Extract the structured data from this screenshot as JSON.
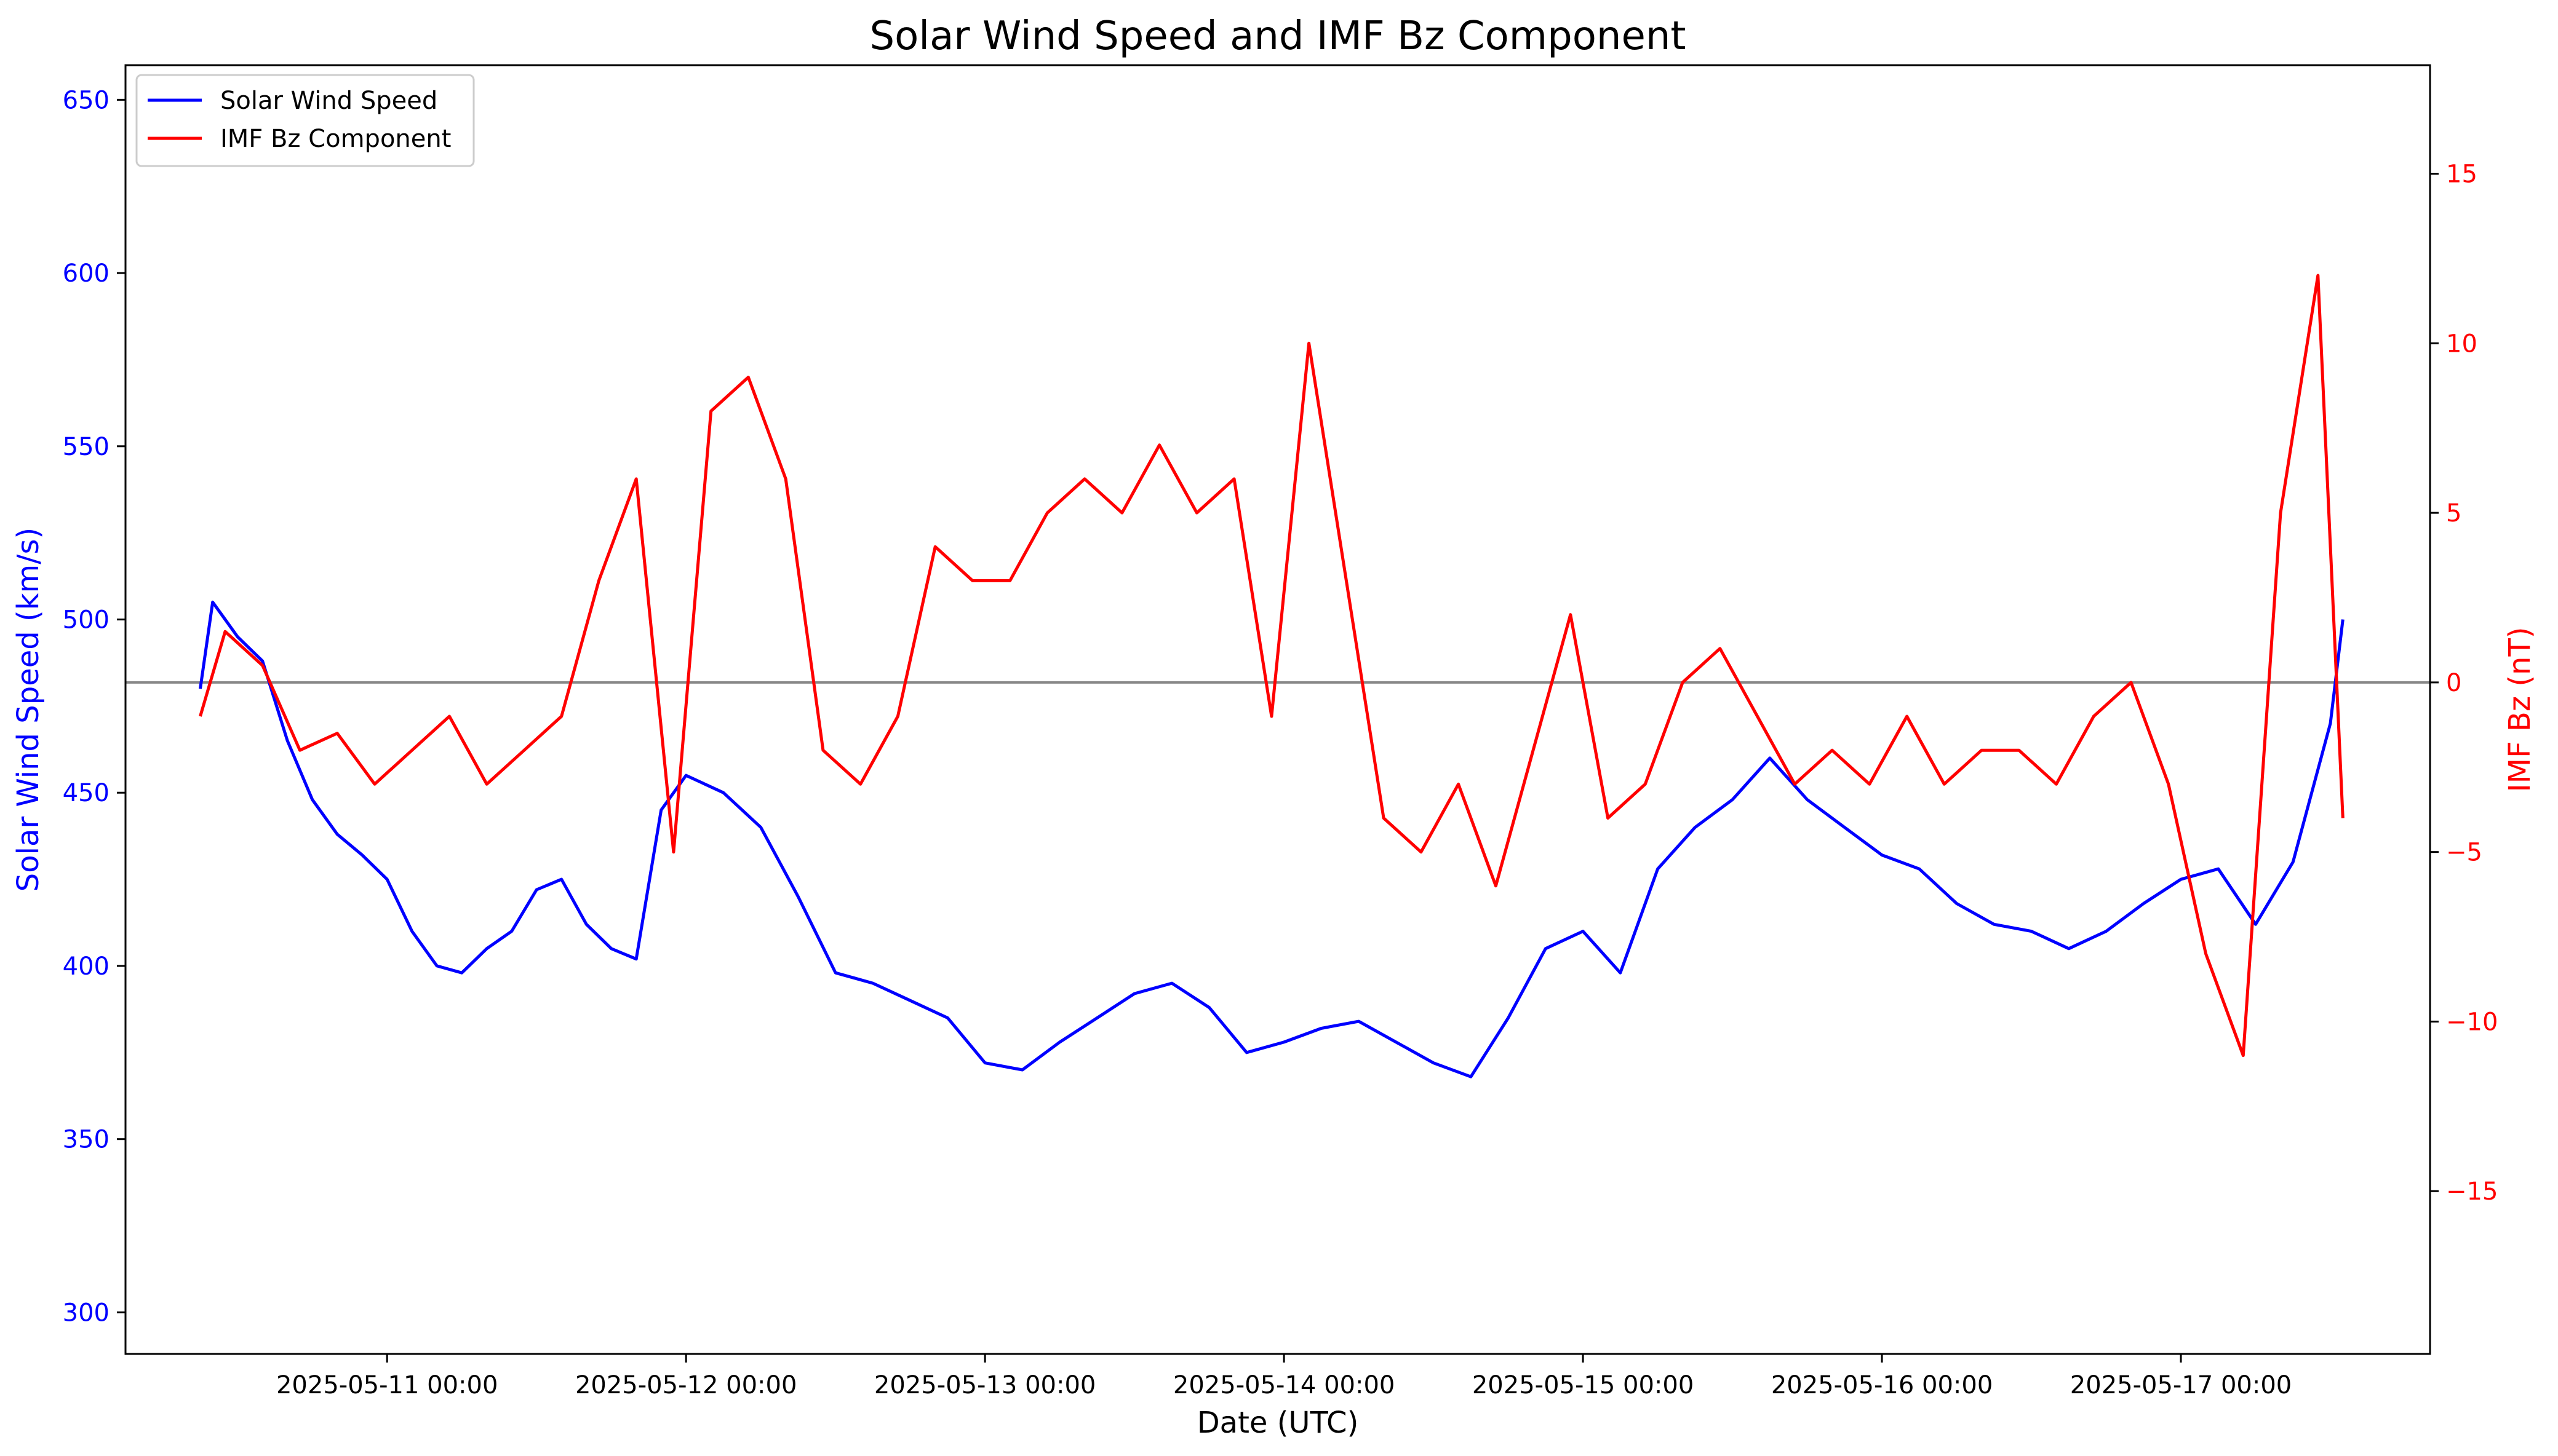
{
  "chart_data": {
    "type": "line",
    "title": "Solar Wind Speed and IMF Bz Component",
    "xlabel": "Date (UTC)",
    "ylabel_left": "Solar Wind Speed (km/s)",
    "ylabel_right": "IMF Bz (nT)",
    "xlim": [
      "2025-05-10 03:00",
      "2025-05-17 20:00"
    ],
    "ylim_left": [
      288,
      660
    ],
    "ylim_right": [
      -19.8,
      18.2
    ],
    "x_ticks": [
      "2025-05-11 00:00",
      "2025-05-12 00:00",
      "2025-05-13 00:00",
      "2025-05-14 00:00",
      "2025-05-15 00:00",
      "2025-05-16 00:00",
      "2025-05-17 00:00"
    ],
    "y_ticks_left": [
      300,
      350,
      400,
      450,
      500,
      550,
      600,
      650
    ],
    "y_ticks_right": [
      -15,
      -10,
      -5,
      0,
      5,
      10,
      15
    ],
    "reference_line": {
      "axis": "right",
      "value": 0,
      "color": "#888888"
    },
    "grid": false,
    "legend_position": "upper-left",
    "series": [
      {
        "name": "Solar Wind Speed",
        "axis": "left",
        "color": "#0000ff",
        "x": [
          "2025-05-10 09:00",
          "2025-05-10 10:00",
          "2025-05-10 11:00",
          "2025-05-10 12:00",
          "2025-05-10 14:00",
          "2025-05-10 16:00",
          "2025-05-10 18:00",
          "2025-05-10 20:00",
          "2025-05-10 22:00",
          "2025-05-11 00:00",
          "2025-05-11 02:00",
          "2025-05-11 04:00",
          "2025-05-11 06:00",
          "2025-05-11 08:00",
          "2025-05-11 10:00",
          "2025-05-11 12:00",
          "2025-05-11 14:00",
          "2025-05-11 16:00",
          "2025-05-11 18:00",
          "2025-05-11 20:00",
          "2025-05-11 22:00",
          "2025-05-12 00:00",
          "2025-05-12 03:00",
          "2025-05-12 06:00",
          "2025-05-12 09:00",
          "2025-05-12 12:00",
          "2025-05-12 15:00",
          "2025-05-12 18:00",
          "2025-05-12 21:00",
          "2025-05-13 00:00",
          "2025-05-13 03:00",
          "2025-05-13 06:00",
          "2025-05-13 09:00",
          "2025-05-13 12:00",
          "2025-05-13 15:00",
          "2025-05-13 18:00",
          "2025-05-13 21:00",
          "2025-05-14 00:00",
          "2025-05-14 03:00",
          "2025-05-14 06:00",
          "2025-05-14 09:00",
          "2025-05-14 12:00",
          "2025-05-14 15:00",
          "2025-05-14 18:00",
          "2025-05-14 21:00",
          "2025-05-15 00:00",
          "2025-05-15 03:00",
          "2025-05-15 06:00",
          "2025-05-15 09:00",
          "2025-05-15 12:00",
          "2025-05-15 15:00",
          "2025-05-15 18:00",
          "2025-05-15 21:00",
          "2025-05-16 00:00",
          "2025-05-16 03:00",
          "2025-05-16 06:00",
          "2025-05-16 09:00",
          "2025-05-16 12:00",
          "2025-05-16 15:00",
          "2025-05-16 18:00",
          "2025-05-16 21:00",
          "2025-05-17 00:00",
          "2025-05-17 03:00",
          "2025-05-17 06:00",
          "2025-05-17 09:00",
          "2025-05-17 12:00",
          "2025-05-17 13:00"
        ],
        "y": [
          480,
          505,
          500,
          495,
          488,
          465,
          448,
          438,
          432,
          425,
          410,
          400,
          398,
          405,
          410,
          422,
          425,
          412,
          405,
          402,
          445,
          455,
          450,
          440,
          420,
          398,
          395,
          390,
          385,
          372,
          370,
          378,
          385,
          392,
          395,
          388,
          375,
          378,
          382,
          384,
          378,
          372,
          368,
          385,
          405,
          410,
          398,
          428,
          440,
          448,
          460,
          448,
          440,
          432,
          428,
          418,
          412,
          410,
          405,
          410,
          418,
          425,
          428,
          412,
          430,
          470,
          500
        ]
      },
      {
        "name": "IMF Bz Component",
        "axis": "right",
        "color": "#ff0000",
        "x": [
          "2025-05-10 09:00",
          "2025-05-10 11:00",
          "2025-05-10 14:00",
          "2025-05-10 17:00",
          "2025-05-10 20:00",
          "2025-05-10 23:00",
          "2025-05-11 02:00",
          "2025-05-11 05:00",
          "2025-05-11 08:00",
          "2025-05-11 11:00",
          "2025-05-11 14:00",
          "2025-05-11 17:00",
          "2025-05-11 20:00",
          "2025-05-11 23:00",
          "2025-05-12 02:00",
          "2025-05-12 05:00",
          "2025-05-12 08:00",
          "2025-05-12 11:00",
          "2025-05-12 14:00",
          "2025-05-12 17:00",
          "2025-05-12 20:00",
          "2025-05-12 23:00",
          "2025-05-13 02:00",
          "2025-05-13 05:00",
          "2025-05-13 08:00",
          "2025-05-13 11:00",
          "2025-05-13 14:00",
          "2025-05-13 17:00",
          "2025-05-13 20:00",
          "2025-05-13 23:00",
          "2025-05-14 02:00",
          "2025-05-14 05:00",
          "2025-05-14 08:00",
          "2025-05-14 11:00",
          "2025-05-14 14:00",
          "2025-05-14 17:00",
          "2025-05-14 20:00",
          "2025-05-14 23:00",
          "2025-05-15 02:00",
          "2025-05-15 05:00",
          "2025-05-15 08:00",
          "2025-05-15 11:00",
          "2025-05-15 14:00",
          "2025-05-15 17:00",
          "2025-05-15 20:00",
          "2025-05-15 23:00",
          "2025-05-16 02:00",
          "2025-05-16 05:00",
          "2025-05-16 08:00",
          "2025-05-16 11:00",
          "2025-05-16 14:00",
          "2025-05-16 17:00",
          "2025-05-16 20:00",
          "2025-05-16 23:00",
          "2025-05-17 02:00",
          "2025-05-17 05:00",
          "2025-05-17 08:00",
          "2025-05-17 11:00",
          "2025-05-17 13:00"
        ],
        "y": [
          -1,
          1.5,
          0.5,
          -2,
          -1.5,
          -3,
          -2,
          -1,
          -3,
          -2,
          -1,
          3,
          6,
          -5,
          8,
          9,
          6,
          -2,
          -3,
          -1,
          4,
          3,
          3,
          5,
          6,
          5,
          7,
          5,
          6,
          -1,
          10,
          3,
          -4,
          -5,
          -3,
          -6,
          -2,
          2,
          -4,
          -3,
          0,
          1,
          -1,
          -3,
          -2,
          -3,
          -1,
          -3,
          -2,
          -2,
          -3,
          -1,
          0,
          -3,
          -8,
          -11,
          5,
          12,
          -4
        ]
      }
    ]
  }
}
